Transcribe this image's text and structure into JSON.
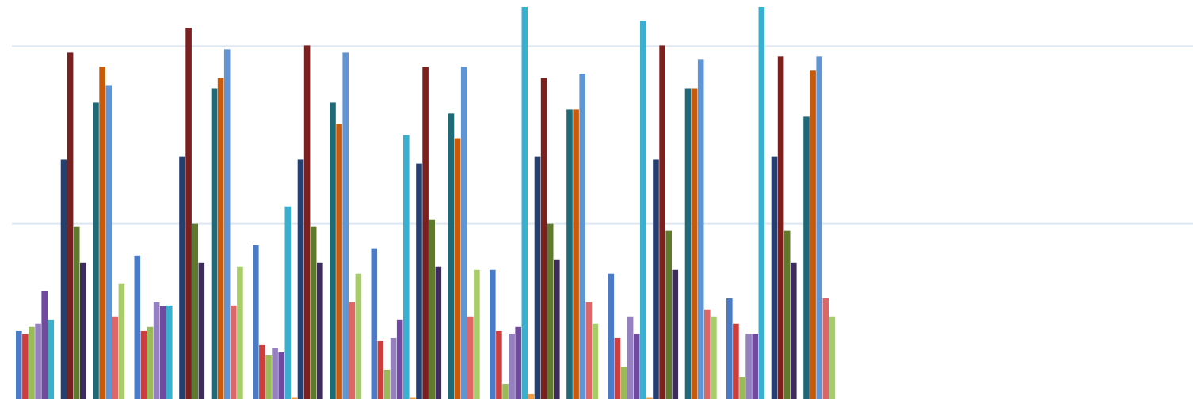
{
  "chart_data": {
    "type": "bar",
    "categories": [
      null,
      null,
      null,
      null,
      null,
      null,
      null
    ],
    "ylim": [
      0,
      226
    ],
    "yticks": [
      100,
      200
    ],
    "grid": true,
    "series": [
      {
        "color": "#4a7bc8",
        "values": [
          39.7,
          82.1,
          87.9,
          86.2,
          74.1,
          71.9,
          58.0
        ]
      },
      {
        "color": "#cc3d3d",
        "values": [
          37.9,
          39.7,
          31.7,
          33.9,
          39.7,
          35.7,
          43.8
        ]
      },
      {
        "color": "#9bbb59",
        "values": [
          42.0,
          42.0,
          25.9,
          17.9,
          9.8,
          19.6,
          13.8
        ]
      },
      {
        "color": "#9580c0",
        "values": [
          43.8,
          55.8,
          29.9,
          35.7,
          37.9,
          47.8,
          37.9
        ]
      },
      {
        "color": "#6f4a9e",
        "values": [
          62.0,
          53.6,
          27.7,
          46.0,
          42.0,
          37.9,
          37.9
        ]
      },
      {
        "color": "#3ab0d0",
        "values": [
          46.0,
          54.0,
          109.8,
          150.0,
          222.0,
          214.3,
          222.0
        ]
      },
      {
        "color": "#f29a3a",
        "values": [
          1,
          1,
          2,
          2,
          4,
          2,
          1
        ]
      },
      {
        "color": "#243f70",
        "values": [
          136.2,
          137.9,
          136.2,
          133.9,
          137.9,
          136.2,
          137.9
        ]
      },
      {
        "color": "#7b1f1f",
        "values": [
          196.4,
          210.3,
          200.4,
          188.4,
          182.1,
          200.4,
          194.2
        ]
      },
      {
        "color": "#5f7a2a",
        "values": [
          98.2,
          100.0,
          98.2,
          102.2,
          100.0,
          96.0,
          96.0
        ]
      },
      {
        "color": "#3d2c5c",
        "values": [
          78.1,
          78.1,
          78.1,
          75.9,
          79.9,
          74.1,
          78.1
        ]
      },
      {
        "color": "#1f6a78",
        "values": [
          168.3,
          176.3,
          168.3,
          162.1,
          164.3,
          176.3,
          160.3
        ]
      },
      {
        "color": "#c85a0a",
        "values": [
          188.4,
          182.1,
          156.3,
          148.2,
          164.3,
          176.3,
          186.2
        ]
      },
      {
        "color": "#5f95d5",
        "values": [
          178.1,
          198.2,
          196.4,
          188.4,
          184.4,
          192.4,
          194.2
        ]
      },
      {
        "color": "#e06666",
        "values": [
          47.8,
          54.0,
          55.8,
          47.8,
          55.8,
          51.8,
          58.0
        ]
      },
      {
        "color": "#a8cc6a",
        "values": [
          66.1,
          75.9,
          71.9,
          74.1,
          43.8,
          47.8,
          47.8
        ]
      }
    ]
  }
}
